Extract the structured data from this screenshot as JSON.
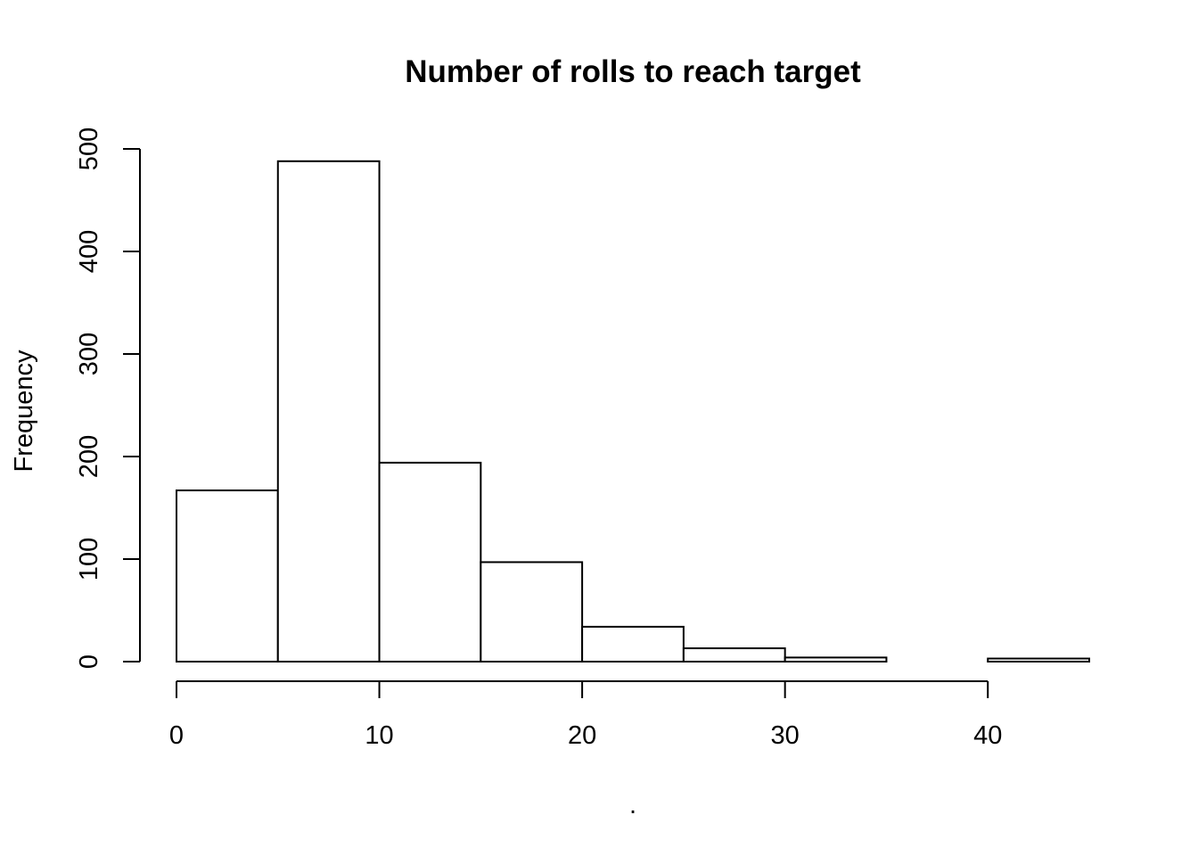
{
  "chart_data": {
    "type": "bar",
    "title": "Number of rolls to reach target",
    "xlabel": ".",
    "ylabel": "Frequency",
    "bins": [
      {
        "from": 0,
        "to": 5,
        "count": 167
      },
      {
        "from": 5,
        "to": 10,
        "count": 488
      },
      {
        "from": 10,
        "to": 15,
        "count": 194
      },
      {
        "from": 15,
        "to": 20,
        "count": 97
      },
      {
        "from": 20,
        "to": 25,
        "count": 34
      },
      {
        "from": 25,
        "to": 30,
        "count": 13
      },
      {
        "from": 30,
        "to": 35,
        "count": 4
      },
      {
        "from": 35,
        "to": 40,
        "count": 0
      },
      {
        "from": 40,
        "to": 45,
        "count": 3
      }
    ],
    "xlim": [
      0,
      45
    ],
    "ylim": [
      0,
      500
    ],
    "x_ticks": [
      0,
      10,
      20,
      30,
      40
    ],
    "y_ticks": [
      0,
      100,
      200,
      300,
      400,
      500
    ],
    "x_tick_labels": [
      "0",
      "10",
      "20",
      "30",
      "40"
    ],
    "y_tick_labels": [
      "0",
      "100",
      "200",
      "300",
      "400",
      "500"
    ],
    "grid": false,
    "legend": "none",
    "bar_fill": "#ffffff",
    "bar_stroke": "#000000"
  }
}
